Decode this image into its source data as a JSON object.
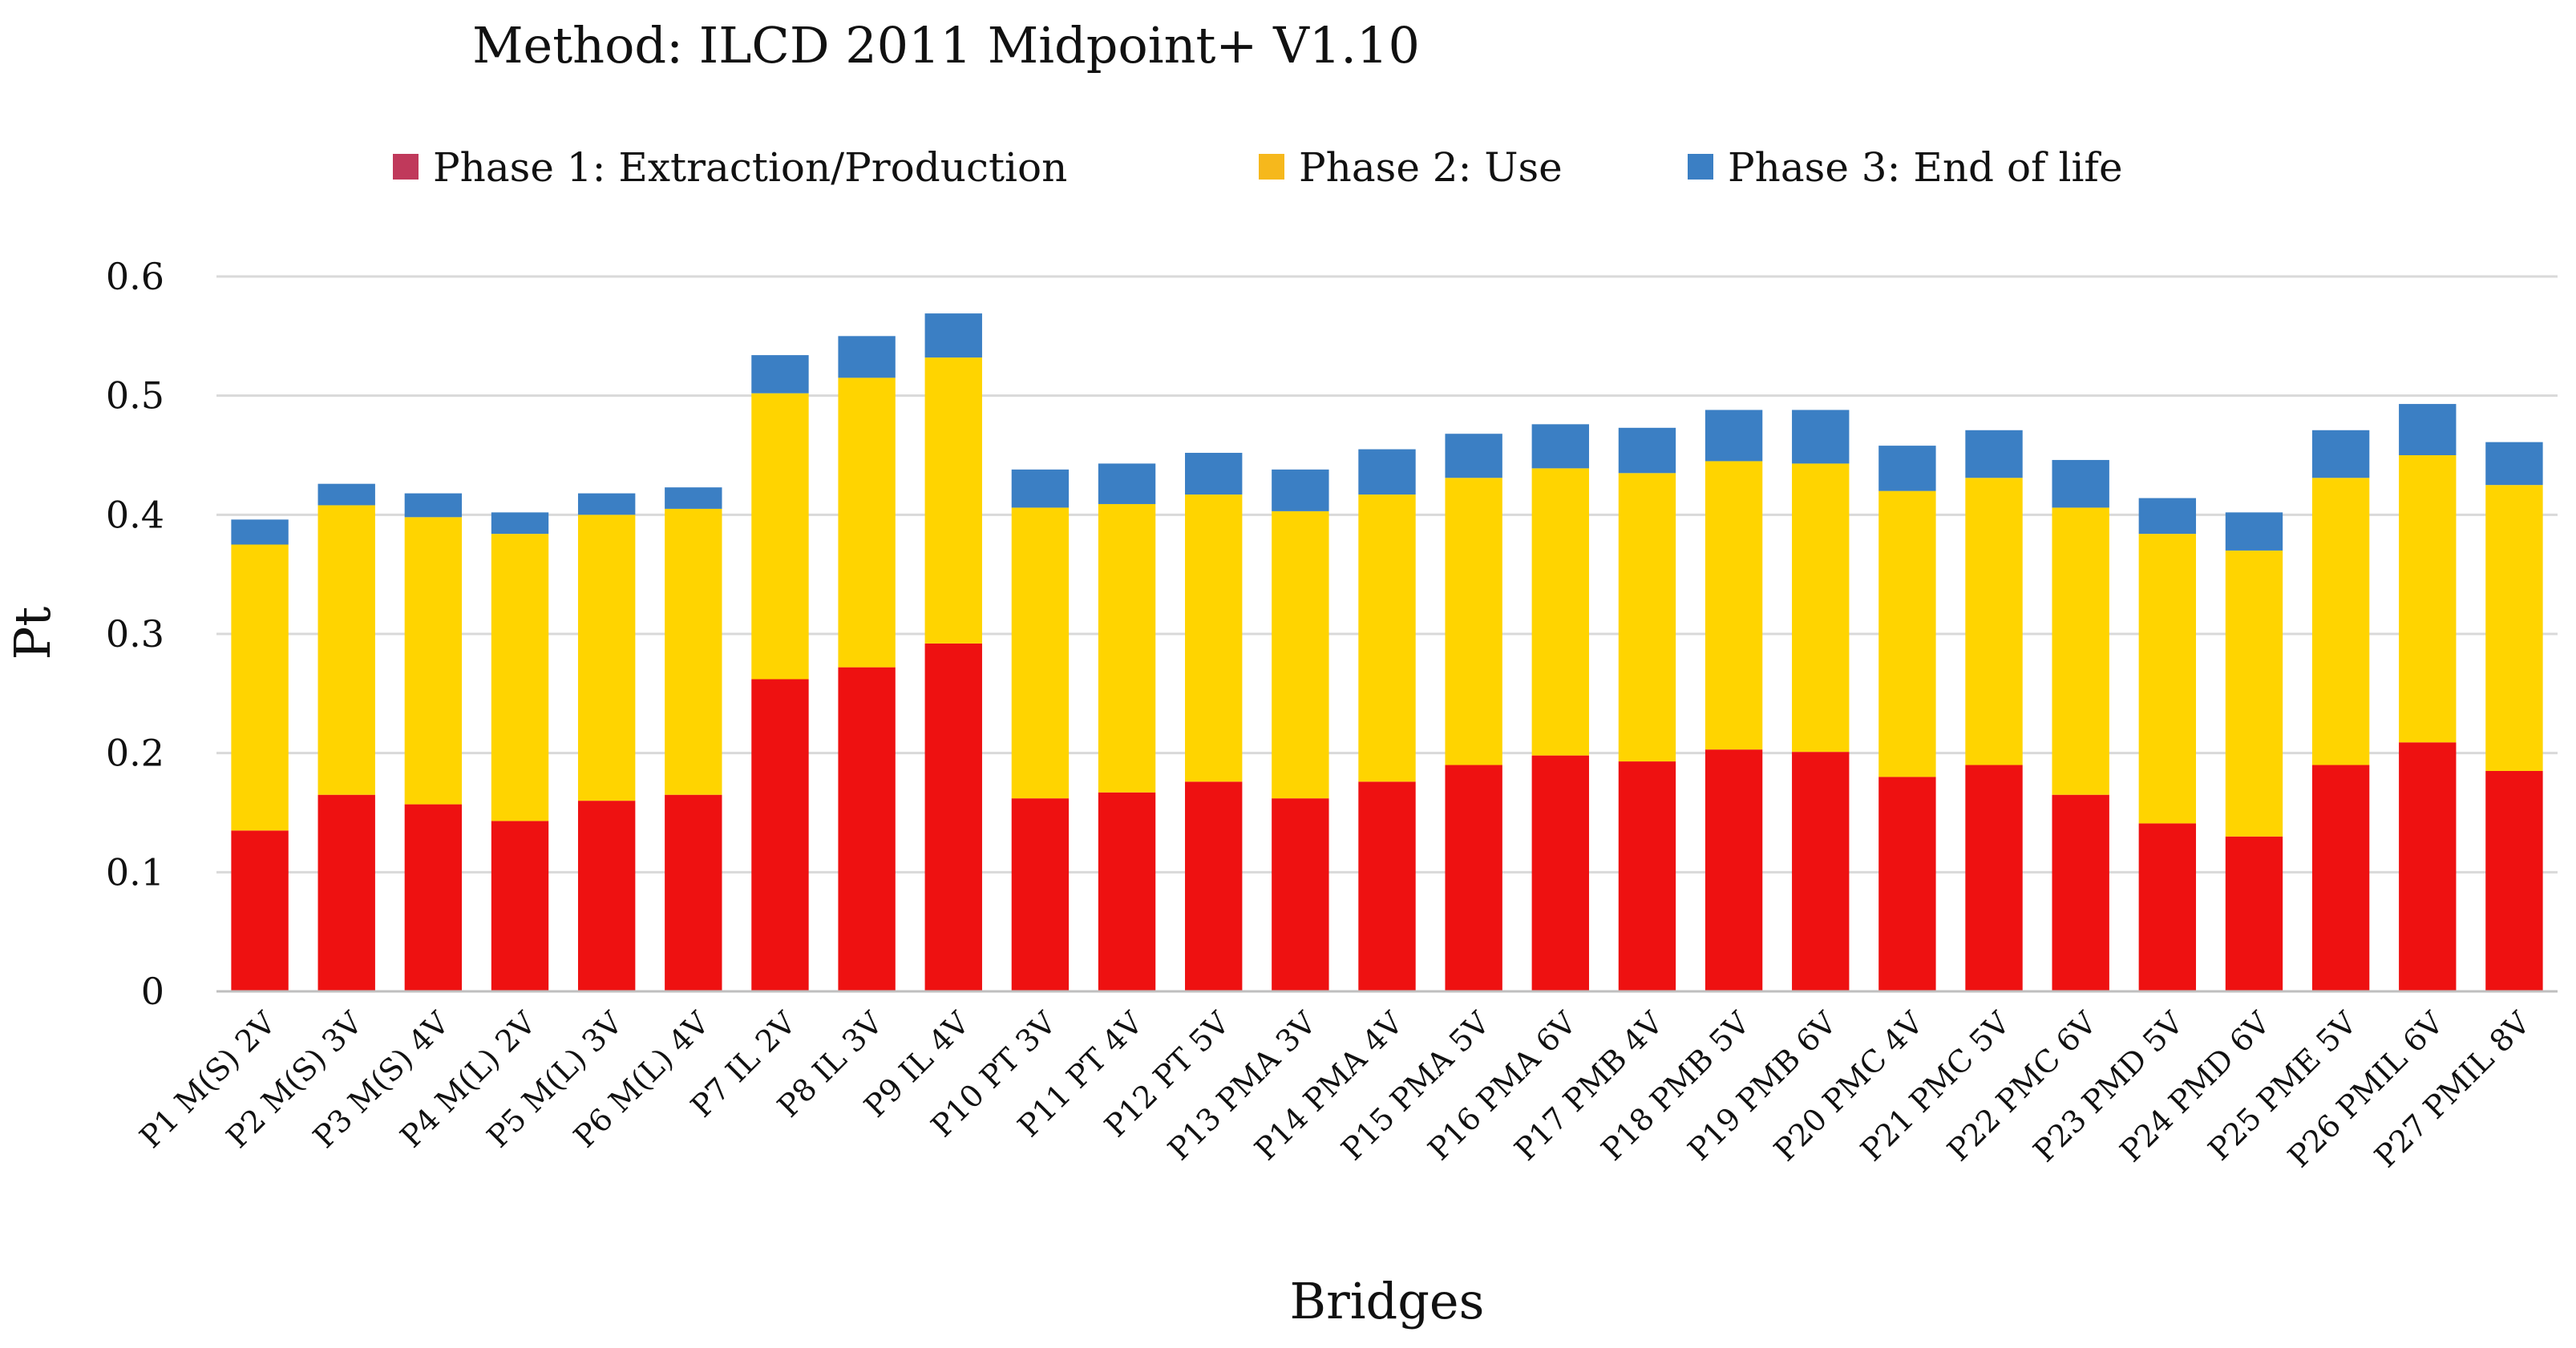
{
  "chart_data": {
    "type": "bar",
    "stacked": true,
    "title": "Method:  ILCD 2011 Midpoint+  V1.10",
    "xlabel": "Bridges",
    "ylabel": "Pt",
    "ylim": [
      0,
      0.6
    ],
    "yticks": [
      "0",
      "0.1",
      "0.2",
      "0.3",
      "0.4",
      "0.5",
      "0.6"
    ],
    "grid": true,
    "legend_position": "top",
    "categories": [
      "P1 M(S) 2V",
      "P2 M(S) 3V",
      "P3 M(S) 4V",
      "P4 M(L) 2V",
      "P5 M(L) 3V",
      "P6 M(L) 4V",
      "P7 IL 2V",
      "P8 IL 3V",
      "P9 IL 4V",
      "P10 PT 3V",
      "P11 PT 4V",
      "P12 PT 5V",
      "P13 PMA 3V",
      "P14 PMA 4V",
      "P15 PMA 5V",
      "P16 PMA 6V",
      "P17 PMB 4V",
      "P18 PMB 5V",
      "P19 PMB 6V",
      "P20 PMC 4V",
      "P21 PMC 5V",
      "P22 PMC 6V",
      "P23 PMD 5V",
      "P24 PMD 6V",
      "P25 PME 5V",
      "P26 PMIL 6V",
      "P27 PMIL 8V"
    ],
    "series": [
      {
        "name": "Phase 1: Extraction/Production",
        "color": "#ee1111",
        "legend_color": "#c0395b",
        "values": [
          0.135,
          0.165,
          0.157,
          0.143,
          0.16,
          0.165,
          0.262,
          0.272,
          0.292,
          0.162,
          0.167,
          0.176,
          0.162,
          0.176,
          0.19,
          0.198,
          0.193,
          0.203,
          0.201,
          0.18,
          0.19,
          0.165,
          0.141,
          0.13,
          0.19,
          0.209,
          0.185
        ]
      },
      {
        "name": "Phase 2: Use",
        "color": "#ffd400",
        "legend_color": "#f6b81c",
        "values": [
          0.24,
          0.243,
          0.241,
          0.241,
          0.24,
          0.24,
          0.24,
          0.243,
          0.24,
          0.244,
          0.242,
          0.241,
          0.241,
          0.241,
          0.241,
          0.241,
          0.242,
          0.242,
          0.242,
          0.24,
          0.241,
          0.241,
          0.243,
          0.24,
          0.241,
          0.241,
          0.24
        ]
      },
      {
        "name": "Phase 3: End of life",
        "color": "#3b7fc4",
        "legend_color": "#3b7fc4",
        "values": [
          0.021,
          0.018,
          0.02,
          0.018,
          0.018,
          0.018,
          0.032,
          0.035,
          0.037,
          0.032,
          0.034,
          0.035,
          0.035,
          0.038,
          0.037,
          0.037,
          0.038,
          0.043,
          0.045,
          0.038,
          0.04,
          0.04,
          0.03,
          0.032,
          0.04,
          0.043,
          0.036
        ]
      }
    ]
  }
}
